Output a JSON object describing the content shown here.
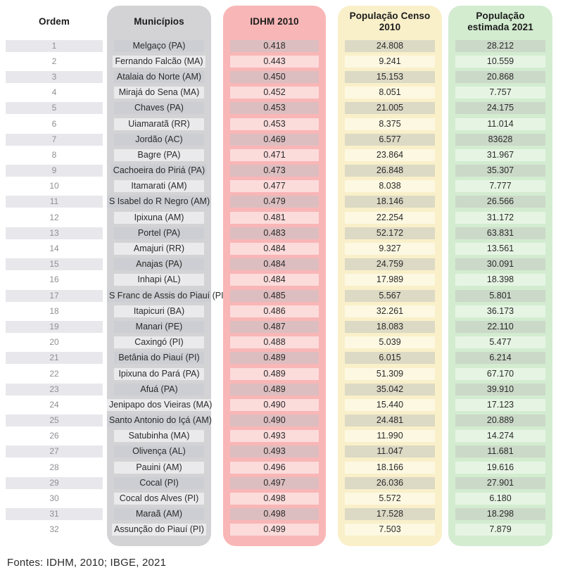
{
  "chart_data": {
    "type": "table",
    "columns": [
      "Ordem",
      "Municípios",
      "IDHM 2010",
      "População Censo 2010",
      "População estimada 2021"
    ],
    "rows": [
      [
        "1",
        "Melgaço (PA)",
        "0.418",
        "24.808",
        "28.212"
      ],
      [
        "2",
        "Fernando Falcão (MA)",
        "0.443",
        "9.241",
        "10.559"
      ],
      [
        "3",
        "Atalaia do Norte (AM)",
        "0.450",
        "15.153",
        "20.868"
      ],
      [
        "4",
        "Mirajá do Sena (MA)",
        "0.452",
        "8.051",
        "7.757"
      ],
      [
        "5",
        "Chaves (PA)",
        "0.453",
        "21.005",
        "24.175"
      ],
      [
        "6",
        "Uiamaratã (RR)",
        "0.453",
        "8.375",
        "11.014"
      ],
      [
        "7",
        "Jordão (AC)",
        "0.469",
        "6.577",
        "83628"
      ],
      [
        "8",
        "Bagre (PA)",
        "0.471",
        "23.864",
        "31.967"
      ],
      [
        "9",
        "Cachoeira do Piriá (PA)",
        "0.473",
        "26.848",
        "35.307"
      ],
      [
        "10",
        "Itamarati (AM)",
        "0.477",
        "8.038",
        "7.777"
      ],
      [
        "11",
        "S Isabel do R Negro (AM)",
        "0.479",
        "18.146",
        "26.566"
      ],
      [
        "12",
        "Ipixuna (AM)",
        "0.481",
        "22.254",
        "31.172"
      ],
      [
        "13",
        "Portel (PA)",
        "0.483",
        "52.172",
        "63.831"
      ],
      [
        "14",
        "Amajuri (RR)",
        "0.484",
        "9.327",
        "13.561"
      ],
      [
        "15",
        "Anajas (PA)",
        "0.484",
        "24.759",
        "30.091"
      ],
      [
        "16",
        "Inhapi (AL)",
        "0.484",
        "17.989",
        "18.398"
      ],
      [
        "17",
        "S Franc de Assis do Piauí (PI)",
        "0.485",
        "5.567",
        "5.801"
      ],
      [
        "18",
        "Itapicuri (BA)",
        "0.486",
        "32.261",
        "36.173"
      ],
      [
        "19",
        "Manari (PE)",
        "0.487",
        "18.083",
        "22.110"
      ],
      [
        "20",
        "Caxingó (PI)",
        "0.488",
        "5.039",
        "5.477"
      ],
      [
        "21",
        "Betânia do Piauí (PI)",
        "0.489",
        "6.015",
        "6.214"
      ],
      [
        "22",
        "Ipixuna do Pará (PA)",
        "0.489",
        "51.309",
        "67.170"
      ],
      [
        "23",
        "Afuá (PA)",
        "0.489",
        "35.042",
        "39.910"
      ],
      [
        "24",
        "Jenipapo dos Vieiras (MA)",
        "0.490",
        "15.440",
        "17.123"
      ],
      [
        "25",
        "Santo Antonio do Içá (AM)",
        "0.490",
        "24.481",
        "20.889"
      ],
      [
        "26",
        "Satubinha (MA)",
        "0.493",
        "11.990",
        "14.274"
      ],
      [
        "27",
        "Olivença (AL)",
        "0.493",
        "11.047",
        "11.681"
      ],
      [
        "28",
        "Pauini (AM)",
        "0.496",
        "18.166",
        "19.616"
      ],
      [
        "29",
        "Cocal (PI)",
        "0.497",
        "26.036",
        "27.901"
      ],
      [
        "30",
        "Cocal dos Alves (PI)",
        "0.498",
        "5.572",
        "6.180"
      ],
      [
        "31",
        "Maraã (AM)",
        "0.498",
        "17.528",
        "18.298"
      ],
      [
        "32",
        "Assunção do Piauí (PI)",
        "0.499",
        "7.503",
        "7.879"
      ]
    ]
  },
  "footer": "Fontes: IDHM, 2010; IBGE, 2021",
  "colors": {
    "ordem_odd": "#e8e8ec",
    "gray_panel": "#d3d3d5",
    "gray_odd": "#ccced3",
    "gray_even": "#eaeaec",
    "pink_panel": "#f9b6b6",
    "pink_odd": "#ddbec0",
    "pink_even": "#fcdbdb",
    "yellow_panel": "#f9f0ca",
    "yellow_odd": "#dcd9c4",
    "yellow_even": "#fdf8e1",
    "green_panel": "#d3ecd0",
    "green_odd": "#cbd9c8",
    "green_even": "#e6f5e3"
  }
}
